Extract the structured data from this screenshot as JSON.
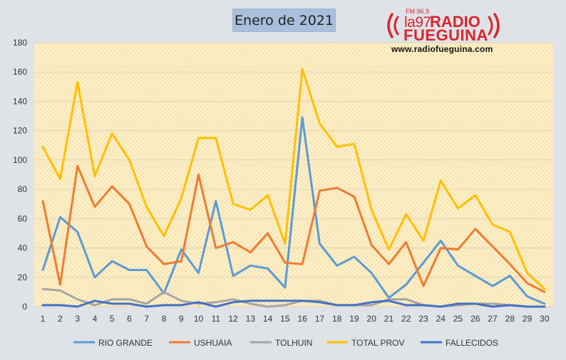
{
  "chart_data": {
    "type": "line",
    "title": "Enero de 2021",
    "ylim": [
      0,
      180
    ],
    "yticks": [
      "0",
      "20",
      "40",
      "60",
      "80",
      "100",
      "120",
      "140",
      "160",
      "180"
    ],
    "categories": [
      "1",
      "2",
      "3",
      "4",
      "5",
      "6",
      "7",
      "8",
      "9",
      "10",
      "11",
      "12",
      "13",
      "14",
      "15",
      "16",
      "17",
      "18",
      "19",
      "20",
      "21",
      "22",
      "23",
      "24",
      "25",
      "26",
      "27",
      "28",
      "29",
      "30"
    ],
    "series": [
      {
        "name": "RIO GRANDE",
        "color": "#5b9bd5",
        "values": [
          25,
          61,
          51,
          20,
          31,
          25,
          25,
          9,
          39,
          23,
          72,
          21,
          28,
          26,
          13,
          129,
          43,
          28,
          34,
          23,
          6,
          15,
          30,
          45,
          28,
          21,
          14,
          21,
          7,
          2
        ]
      },
      {
        "name": "USHUAIA",
        "color": "#ed7d31",
        "values": [
          72,
          15,
          96,
          68,
          82,
          70,
          41,
          29,
          31,
          90,
          40,
          44,
          37,
          50,
          30,
          29,
          79,
          81,
          75,
          42,
          29,
          44,
          14,
          40,
          39,
          53,
          41,
          29,
          16,
          10
        ]
      },
      {
        "name": "TOLHUIN",
        "color": "#a5a5a5",
        "values": [
          12,
          11,
          5,
          1,
          5,
          5,
          2,
          10,
          4,
          2,
          3,
          5,
          2,
          0,
          1,
          4,
          4,
          1,
          1,
          1,
          5,
          5,
          1,
          0,
          1,
          2,
          2,
          1,
          0,
          0
        ]
      },
      {
        "name": "TOTAL PROV",
        "color": "#ffc000",
        "values": [
          109,
          87,
          153,
          89,
          118,
          100,
          68,
          48,
          74,
          115,
          115,
          70,
          66,
          76,
          43,
          162,
          125,
          109,
          111,
          66,
          39,
          63,
          45,
          86,
          67,
          76,
          56,
          51,
          23,
          12
        ]
      },
      {
        "name": "FALLECIDOS",
        "color": "#4472c4",
        "values": [
          1,
          1,
          0,
          4,
          2,
          2,
          0,
          1,
          1,
          3,
          0,
          3,
          4,
          4,
          4,
          4,
          3,
          1,
          1,
          3,
          4,
          1,
          1,
          0,
          2,
          2,
          0,
          1,
          0,
          0
        ]
      }
    ]
  },
  "branding": {
    "fm": "FM 96.9",
    "la97": "la97",
    "radio": "RADIO",
    "fueguina": "FUEGUINA",
    "url": "www.radiofueguina.com"
  },
  "colors": {
    "plot_bg": "#fff2cc",
    "page_bg": "#dfe3e8",
    "brand": "#d9252b"
  }
}
